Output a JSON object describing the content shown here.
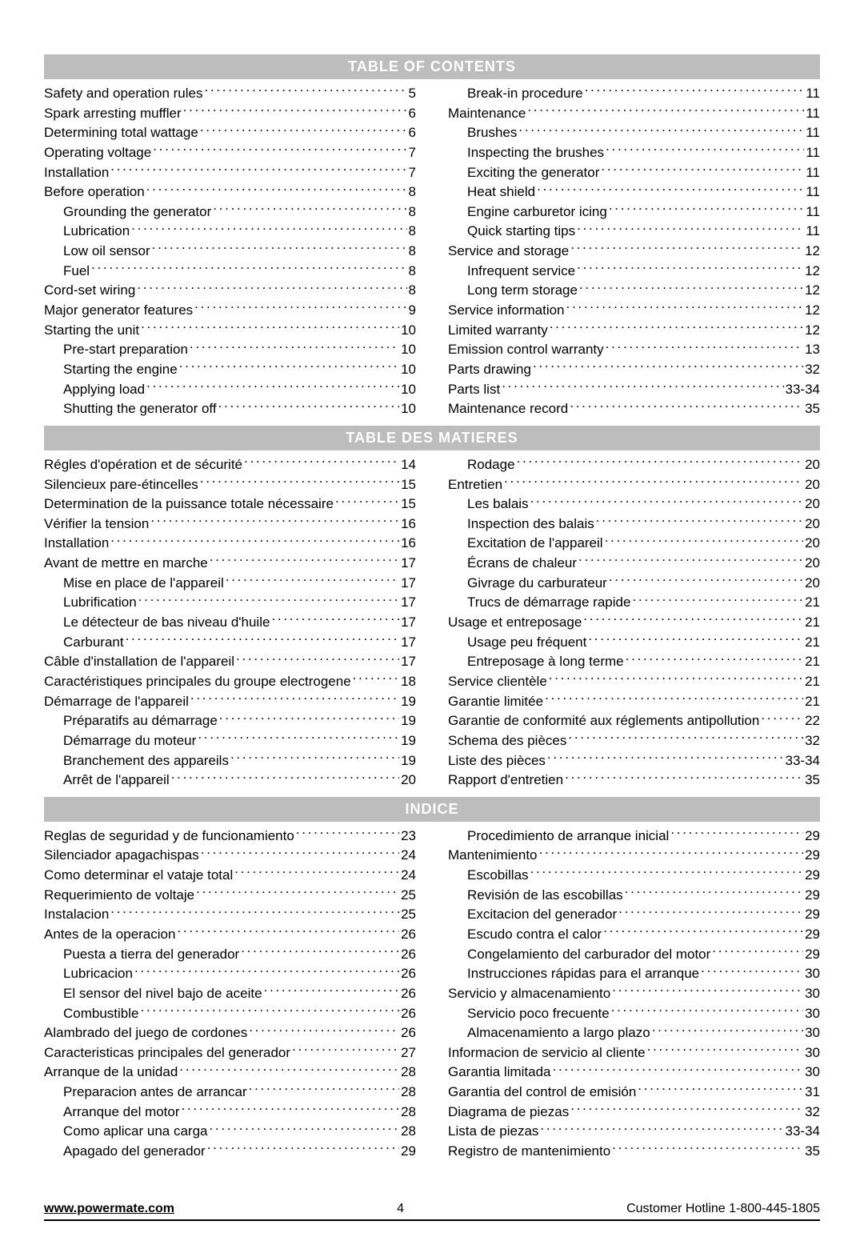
{
  "headers": {
    "en": "TABLE OF CONTENTS",
    "fr": "TABLE DES MATIERES",
    "es": "INDICE"
  },
  "footer": {
    "url": "www.powermate.com",
    "page": "4",
    "hotline": "Customer Hotline 1-800-445-1805"
  },
  "sections": {
    "en": {
      "left": [
        {
          "label": "Safety and operation rules",
          "page": "5",
          "indent": false
        },
        {
          "label": "Spark arresting muffler",
          "page": "6",
          "indent": false
        },
        {
          "label": "Determining total wattage",
          "page": "6",
          "indent": false
        },
        {
          "label": "Operating voltage",
          "page": "7",
          "indent": false
        },
        {
          "label": "Installation",
          "page": "7",
          "indent": false
        },
        {
          "label": "Before operation",
          "page": "8",
          "indent": false
        },
        {
          "label": "Grounding the generator",
          "page": "8",
          "indent": true
        },
        {
          "label": "Lubrication",
          "page": "8",
          "indent": true
        },
        {
          "label": "Low oil sensor",
          "page": "8",
          "indent": true
        },
        {
          "label": "Fuel",
          "page": "8",
          "indent": true
        },
        {
          "label": "Cord-set wiring",
          "page": "8",
          "indent": false
        },
        {
          "label": "Major generator features",
          "page": "9",
          "indent": false
        },
        {
          "label": "Starting the unit",
          "page": "10",
          "indent": false
        },
        {
          "label": "Pre-start preparation",
          "page": "10",
          "indent": true
        },
        {
          "label": "Starting the engine",
          "page": "10",
          "indent": true
        },
        {
          "label": "Applying load",
          "page": "10",
          "indent": true
        },
        {
          "label": "Shutting the generator off",
          "page": "10",
          "indent": true
        }
      ],
      "right": [
        {
          "label": "Break-in procedure",
          "page": "11",
          "indent": true
        },
        {
          "label": "Maintenance",
          "page": "11",
          "indent": false
        },
        {
          "label": "Brushes",
          "page": "11",
          "indent": true
        },
        {
          "label": "Inspecting the brushes",
          "page": "11",
          "indent": true
        },
        {
          "label": "Exciting the generator",
          "page": "11",
          "indent": true
        },
        {
          "label": "Heat shield",
          "page": "11",
          "indent": true
        },
        {
          "label": "Engine carburetor icing",
          "page": "11",
          "indent": true
        },
        {
          "label": "Quick starting tips",
          "page": "11",
          "indent": true
        },
        {
          "label": "Service and storage",
          "page": "12",
          "indent": false
        },
        {
          "label": "Infrequent service",
          "page": "12",
          "indent": true
        },
        {
          "label": "Long term storage",
          "page": "12",
          "indent": true
        },
        {
          "label": "Service information",
          "page": "12",
          "indent": false
        },
        {
          "label": "Limited warranty",
          "page": "12",
          "indent": false
        },
        {
          "label": "Emission control warranty",
          "page": "13",
          "indent": false
        },
        {
          "label": "Parts drawing",
          "page": "32",
          "indent": false
        },
        {
          "label": "Parts list",
          "page": "33-34",
          "indent": false
        },
        {
          "label": "Maintenance record",
          "page": "35",
          "indent": false
        }
      ]
    },
    "fr": {
      "left": [
        {
          "label": "Régles d'opération et de sécurité",
          "page": "14",
          "indent": false
        },
        {
          "label": "Silencieux pare-étincelles",
          "page": "15",
          "indent": false
        },
        {
          "label": "Determination de la puissance totale nécessaire",
          "page": "15",
          "indent": false
        },
        {
          "label": "Vérifier la tension",
          "page": "16",
          "indent": false
        },
        {
          "label": "Installation",
          "page": "16",
          "indent": false
        },
        {
          "label": "Avant de mettre en marche",
          "page": "17",
          "indent": false
        },
        {
          "label": "Mise en place de l'appareil",
          "page": "17",
          "indent": true
        },
        {
          "label": "Lubrification",
          "page": "17",
          "indent": true
        },
        {
          "label": "Le détecteur de bas niveau d'huile",
          "page": "17",
          "indent": true
        },
        {
          "label": "Carburant",
          "page": "17",
          "indent": true
        },
        {
          "label": "Câble d'installation de l'appareil",
          "page": "17",
          "indent": false
        },
        {
          "label": "Caractéristiques principales du groupe electrogene",
          "page": "18",
          "indent": false
        },
        {
          "label": "Démarrage de l'appareil",
          "page": "19",
          "indent": false
        },
        {
          "label": "Préparatifs au démarrage",
          "page": "19",
          "indent": true
        },
        {
          "label": "Démarrage du moteur",
          "page": "19",
          "indent": true
        },
        {
          "label": "Branchement des appareils",
          "page": "19",
          "indent": true
        },
        {
          "label": "Arrêt de l'appareil",
          "page": "20",
          "indent": true
        }
      ],
      "right": [
        {
          "label": "Rodage",
          "page": "20",
          "indent": true
        },
        {
          "label": "Entretien",
          "page": "20",
          "indent": false
        },
        {
          "label": "Les balais",
          "page": "20",
          "indent": true
        },
        {
          "label": "Inspection des balais",
          "page": "20",
          "indent": true
        },
        {
          "label": "Excitation de l'appareil",
          "page": "20",
          "indent": true
        },
        {
          "label": "Écrans de chaleur",
          "page": "20",
          "indent": true
        },
        {
          "label": "Givrage du carburateur",
          "page": "20",
          "indent": true
        },
        {
          "label": "Trucs de démarrage rapide",
          "page": "21",
          "indent": true
        },
        {
          "label": "Usage et entreposage",
          "page": "21",
          "indent": false
        },
        {
          "label": "Usage peu fréquent",
          "page": "21",
          "indent": true
        },
        {
          "label": "Entreposage à long terme",
          "page": "21",
          "indent": true
        },
        {
          "label": "Service clientèle",
          "page": "21",
          "indent": false
        },
        {
          "label": "Garantie limitée",
          "page": "21",
          "indent": false
        },
        {
          "label": "Garantie de conformité aux réglements antipollution",
          "page": "22",
          "indent": false
        },
        {
          "label": "Schema des pièces",
          "page": "32",
          "indent": false
        },
        {
          "label": "Liste des pièces",
          "page": "33-34",
          "indent": false
        },
        {
          "label": "Rapport d'entretien",
          "page": "35",
          "indent": false
        }
      ]
    },
    "es": {
      "left": [
        {
          "label": "Reglas de seguridad y de funcionamiento",
          "page": "23",
          "indent": false
        },
        {
          "label": "Silenciador apagachispas",
          "page": "24",
          "indent": false
        },
        {
          "label": "Como determinar el vataje total",
          "page": "24",
          "indent": false
        },
        {
          "label": "Requerimiento de voltaje",
          "page": "25",
          "indent": false
        },
        {
          "label": "Instalacion",
          "page": "25",
          "indent": false
        },
        {
          "label": "Antes de la operacion",
          "page": "26",
          "indent": false
        },
        {
          "label": "Puesta a tierra del generador",
          "page": "26",
          "indent": true
        },
        {
          "label": "Lubricacion",
          "page": "26",
          "indent": true
        },
        {
          "label": "El sensor del nivel bajo de aceite",
          "page": "26",
          "indent": true
        },
        {
          "label": "Combustible",
          "page": "26",
          "indent": true
        },
        {
          "label": "Alambrado del juego de cordones",
          "page": "26",
          "indent": false
        },
        {
          "label": "Caracteristicas principales del generador",
          "page": "27",
          "indent": false
        },
        {
          "label": "Arranque de la unidad",
          "page": "28",
          "indent": false
        },
        {
          "label": "Preparacion antes de arrancar",
          "page": "28",
          "indent": true
        },
        {
          "label": "Arranque del motor",
          "page": "28",
          "indent": true
        },
        {
          "label": "Como aplicar una carga",
          "page": "28",
          "indent": true
        },
        {
          "label": "Apagado del generador",
          "page": "29",
          "indent": true
        }
      ],
      "right": [
        {
          "label": "Procedimiento de arranque inicial",
          "page": "29",
          "indent": true
        },
        {
          "label": "Mantenimiento",
          "page": "29",
          "indent": false
        },
        {
          "label": "Escobillas",
          "page": "29",
          "indent": true
        },
        {
          "label": "Revisión de las escobillas",
          "page": "29",
          "indent": true
        },
        {
          "label": "Excitacion del generador",
          "page": "29",
          "indent": true
        },
        {
          "label": "Escudo contra el calor",
          "page": "29",
          "indent": true
        },
        {
          "label": "Congelamiento del carburador del motor",
          "page": "29",
          "indent": true
        },
        {
          "label": "Instrucciones rápidas para el arranque",
          "page": "30",
          "indent": true
        },
        {
          "label": "Servicio y almacenamiento",
          "page": "30",
          "indent": false
        },
        {
          "label": "Servicio poco frecuente",
          "page": "30",
          "indent": true
        },
        {
          "label": "Almacenamiento a largo plazo",
          "page": "30",
          "indent": true
        },
        {
          "label": "Informacion de servicio al cliente",
          "page": "30",
          "indent": false
        },
        {
          "label": "Garantia limitada",
          "page": "30",
          "indent": false
        },
        {
          "label": "Garantia del control de emisión",
          "page": "31",
          "indent": false
        },
        {
          "label": "Diagrama de piezas",
          "page": "32",
          "indent": false
        },
        {
          "label": "Lista de piezas",
          "page": "33-34",
          "indent": false
        },
        {
          "label": "Registro de mantenimiento",
          "page": "35",
          "indent": false
        }
      ]
    }
  }
}
